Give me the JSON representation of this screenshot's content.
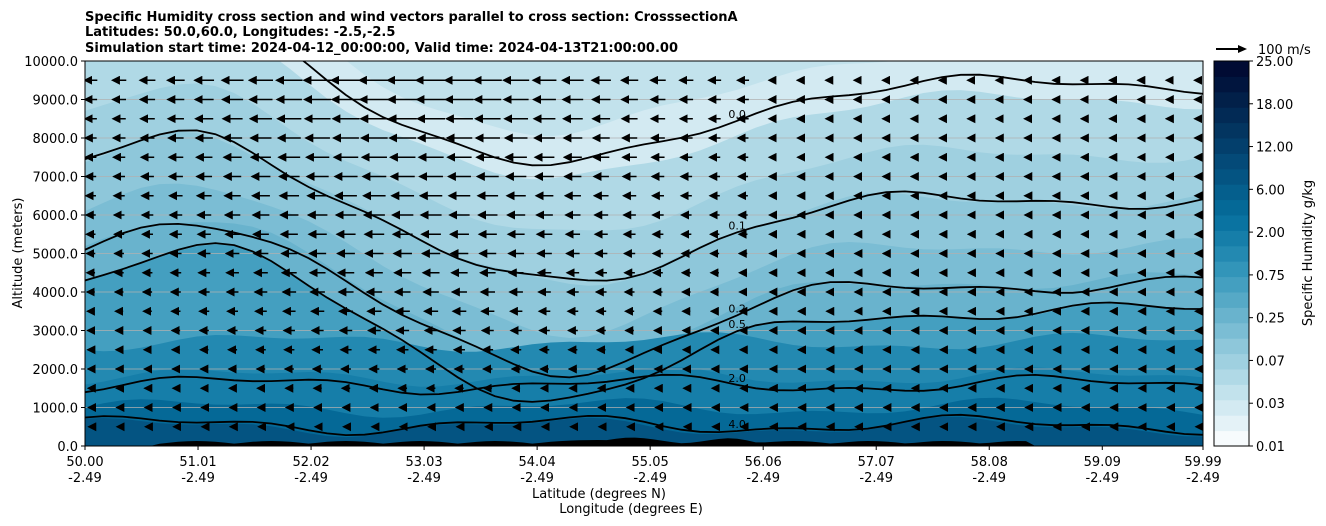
{
  "chart_data": {
    "type": "contour",
    "title_lines": [
      "Specific Humidity cross section and wind vectors parallel to cross section: CrosssectionA",
      "Latitudes: 50.0,60.0, Longitudes: -2.5,-2.5",
      "Simulation start time: 2024-04-12_00:00:00, Valid time: 2024-04-13T21:00:00.00"
    ],
    "xlabel_lines": [
      "Latitude (degrees N)",
      "Longitude (degrees E)"
    ],
    "ylabel": "Altitude (meters)",
    "ylim": [
      0,
      10000
    ],
    "xlim": [
      50.0,
      59.99
    ],
    "yticks": [
      "0.0",
      "1000.0",
      "2000.0",
      "3000.0",
      "4000.0",
      "5000.0",
      "6000.0",
      "7000.0",
      "8000.0",
      "9000.0",
      "10000.0"
    ],
    "xticks": [
      {
        "lat": "50.00",
        "lon": "-2.49"
      },
      {
        "lat": "51.01",
        "lon": "-2.49"
      },
      {
        "lat": "52.02",
        "lon": "-2.49"
      },
      {
        "lat": "53.03",
        "lon": "-2.49"
      },
      {
        "lat": "54.04",
        "lon": "-2.49"
      },
      {
        "lat": "55.05",
        "lon": "-2.49"
      },
      {
        "lat": "56.06",
        "lon": "-2.49"
      },
      {
        "lat": "57.07",
        "lon": "-2.49"
      },
      {
        "lat": "58.08",
        "lon": "-2.49"
      },
      {
        "lat": "59.09",
        "lon": "-2.49"
      },
      {
        "lat": "59.99",
        "lon": "-2.49"
      }
    ],
    "grid": "horizontal",
    "colorbar": {
      "label": "Specific Humidity g/kg",
      "tick_labels": [
        "0.01",
        "0.03",
        "0.07",
        "0.25",
        "0.75",
        "2.00",
        "6.00",
        "12.00",
        "18.00",
        "25.00"
      ],
      "colors": [
        "#f7fbfd",
        "#e4f2f7",
        "#d3eaf2",
        "#c2e2ec",
        "#b0d9e6",
        "#9fd0e0",
        "#8ec7da",
        "#7bbdd4",
        "#69b3cd",
        "#56a9c6",
        "#449fc0",
        "#3295b9",
        "#2389b1",
        "#167ea9",
        "#0a73a1",
        "#056997",
        "#055f8d",
        "#045482",
        "#044a78",
        "#033f6c",
        "#033560",
        "#022a55",
        "#022049",
        "#01153e",
        "#010b33"
      ]
    },
    "wind_key": {
      "label": "100 m/s"
    },
    "contour_levels": [
      {
        "label": "0.0",
        "y": 9400
      },
      {
        "label": "0.1",
        "y": 6400
      },
      {
        "label": "0.2",
        "y": 4200
      },
      {
        "label": "0.5",
        "y": 3500
      },
      {
        "label": "2.0",
        "y": 1600
      },
      {
        "label": "4.0",
        "y": 550
      }
    ]
  }
}
